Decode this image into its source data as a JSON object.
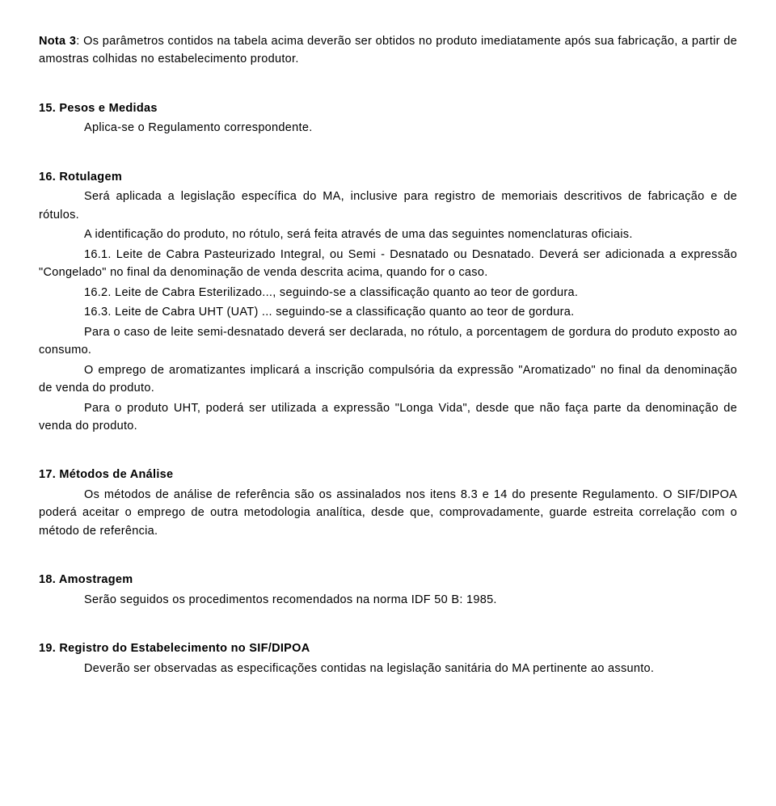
{
  "nota3": {
    "label": "Nota 3",
    "sep": ": ",
    "text": "Os parâmetros contidos na tabela acima deverão ser obtidos no produto imediatamente após sua fabricação, a partir de amostras colhidas no estabelecimento produtor."
  },
  "s15": {
    "head": "15. Pesos e Medidas",
    "line1": "Aplica-se o Regulamento correspondente."
  },
  "s16": {
    "head": "16. Rotulagem",
    "p1": "Será aplicada a legislação específica do MA, inclusive para registro de memoriais descritivos de fabricação e de rótulos.",
    "p2": "A identificação do produto, no rótulo, será feita através de uma das seguintes nomenclaturas oficiais.",
    "p3": "16.1. Leite de Cabra Pasteurizado Integral, ou Semi - Desnatado ou Desnatado. Deverá ser adicionada a expressão \"Congelado\" no final da denominação de venda descrita acima, quando for o caso.",
    "p4": "16.2. Leite de Cabra Esterilizado..., seguindo-se a classificação quanto ao teor de gordura.",
    "p5": "16.3. Leite de Cabra UHT (UAT) ... seguindo-se a classificação quanto ao teor de gordura.",
    "p6": "Para o caso de leite semi-desnatado deverá ser declarada, no rótulo, a porcentagem de gordura do produto exposto ao consumo.",
    "p7": "O emprego de aromatizantes implicará a inscrição compulsória da expressão \"Aromatizado\" no final da denominação de venda do produto.",
    "p8": "Para o produto UHT, poderá ser utilizada a expressão \"Longa Vida\", desde que não faça parte da denominação de venda do produto."
  },
  "s17": {
    "head": "17. Métodos de Análise",
    "p1": "Os métodos de análise de referência são os assinalados nos itens 8.3 e 14 do presente Regulamento. O SIF/DIPOA poderá aceitar o emprego de outra metodologia analítica, desde que, comprovadamente, guarde estreita correlação com o método de referência."
  },
  "s18": {
    "head": "18. Amostragem",
    "p1": "Serão seguidos os procedimentos recomendados na norma IDF 50 B: 1985."
  },
  "s19": {
    "head": "19. Registro do Estabelecimento no SIF/DIPOA",
    "p1": "Deverão ser observadas as especificações contidas na legislação sanitária do MA pertinente ao assunto."
  }
}
